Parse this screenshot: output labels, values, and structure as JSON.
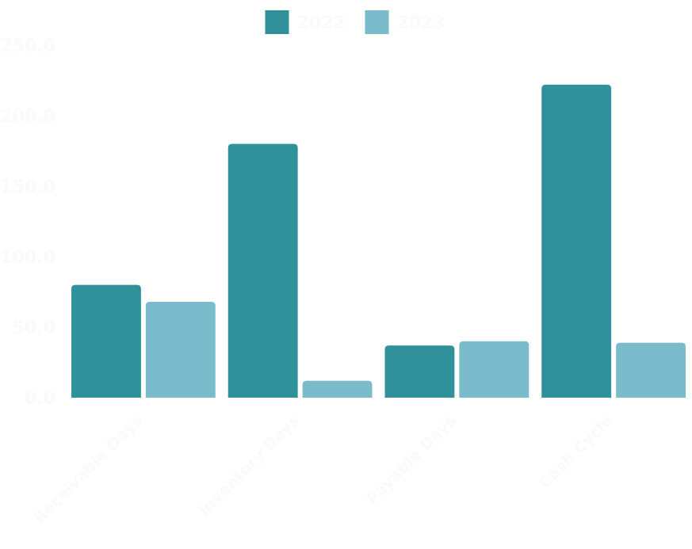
{
  "chart_data": {
    "type": "bar",
    "categories": [
      "Receivable Days",
      "Inventory Days",
      "Payable Days",
      "Cash Cycle"
    ],
    "series": [
      {
        "name": "2022",
        "color": "#31919a",
        "values": [
          80.0,
          180.0,
          37.0,
          222.0
        ]
      },
      {
        "name": "2023",
        "color": "#7bbccc",
        "values": [
          68.0,
          12.0,
          40.0,
          39.0
        ]
      }
    ],
    "yticks": [
      "0.0",
      "50.0",
      "100.0",
      "150.0",
      "200.0",
      "250.0"
    ],
    "ylim": [
      0,
      250
    ],
    "grid": false,
    "legend_position": "top-center"
  }
}
